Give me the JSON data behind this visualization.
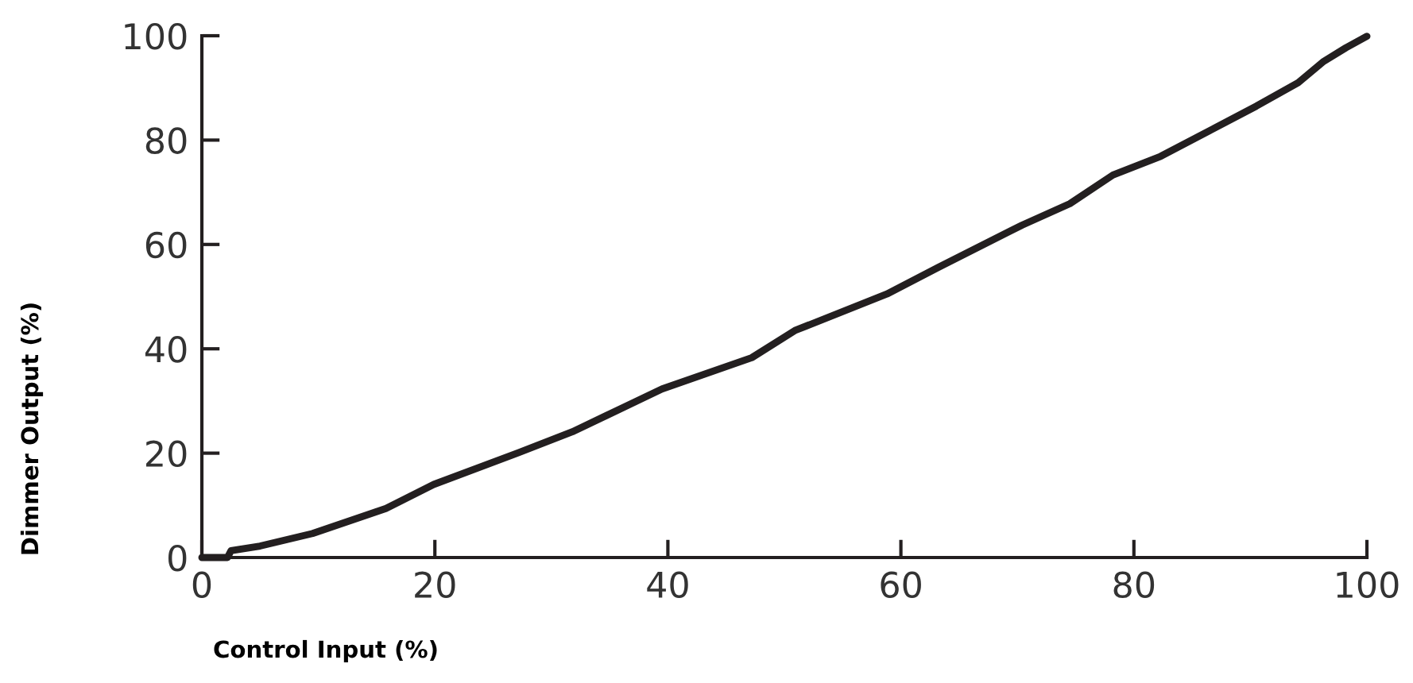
{
  "chart_data": {
    "type": "line",
    "xlabel": "Control Input (%)",
    "ylabel": "Dimmer Output (%)",
    "xlim": [
      0,
      100
    ],
    "ylim": [
      0,
      100
    ],
    "xticks": [
      0,
      20,
      40,
      60,
      80,
      100
    ],
    "yticks": [
      0,
      20,
      40,
      60,
      80,
      100
    ],
    "grid": false,
    "marker": "none",
    "line_style": "solid",
    "series": [
      {
        "color": "#231f20",
        "x": [
          0,
          2.2,
          2.5,
          5,
          9.5,
          15.8,
          19.9,
          27.2,
          31.8,
          39.5,
          47.2,
          50.9,
          58.8,
          63.2,
          70.4,
          74.5,
          78.2,
          82.3,
          90.5,
          94.1,
          96.3,
          98.2,
          100
        ],
        "values": [
          0,
          0,
          1.3,
          2.2,
          4.6,
          9.4,
          14,
          20.1,
          24.1,
          32.3,
          38.3,
          43.5,
          50.5,
          55.6,
          63.7,
          67.8,
          73.3,
          76.9,
          86.5,
          91,
          95.1,
          97.7,
          99.9
        ]
      }
    ]
  }
}
